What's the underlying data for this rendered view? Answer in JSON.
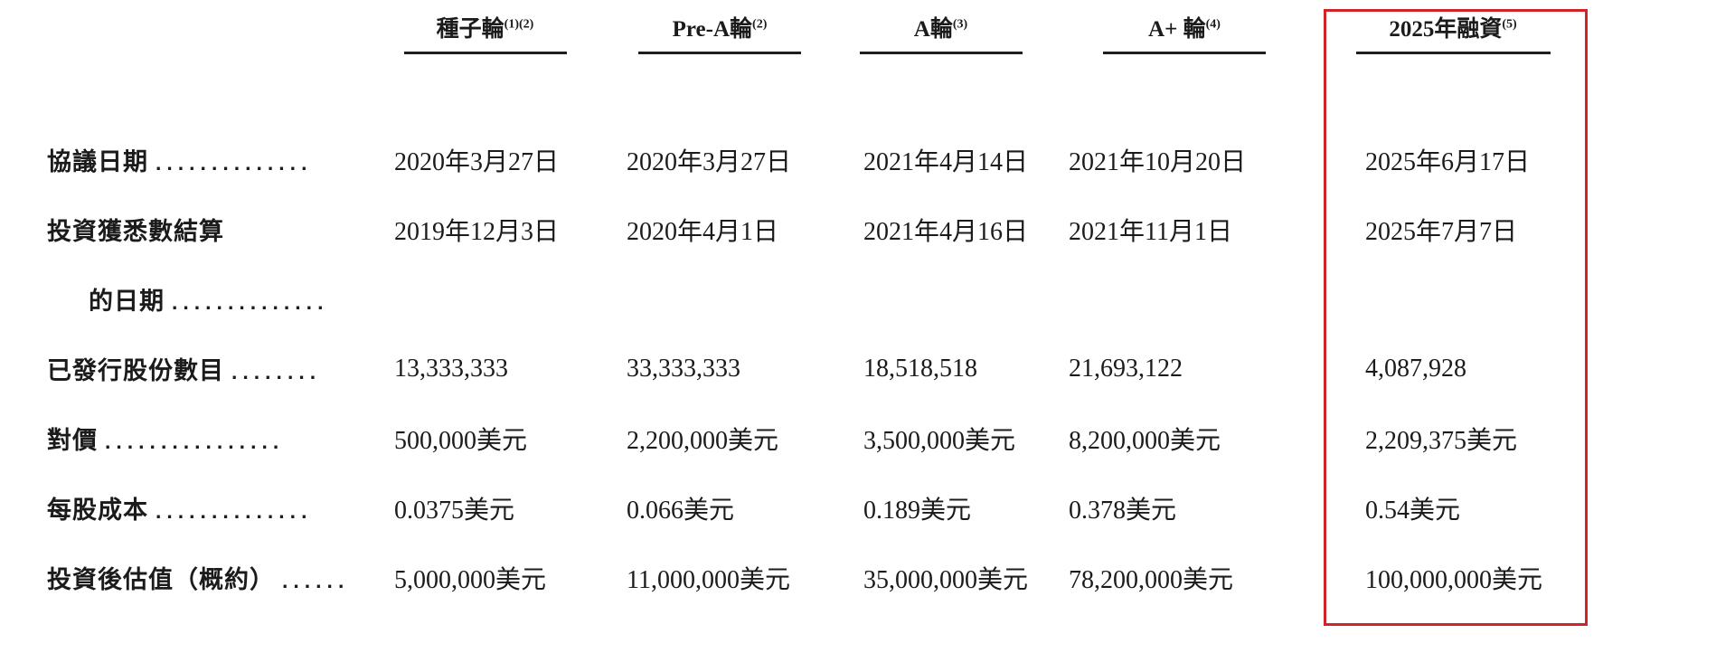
{
  "document": {
    "highlight_color": "#d2232a",
    "columns": [
      {
        "label": "種子輪",
        "sup": "(1)(2)"
      },
      {
        "label": "Pre-A輪",
        "sup": "(2)"
      },
      {
        "label": "A輪",
        "sup": "(3)"
      },
      {
        "label": "A+ 輪",
        "sup": "(4)"
      },
      {
        "label": "2025年融資",
        "sup": "(5)",
        "highlighted": true
      }
    ],
    "rows": [
      {
        "label": "協議日期",
        "leader": "..............",
        "values": [
          "2020年3月27日",
          "2020年3月27日",
          "2021年4月14日",
          "2021年10月20日",
          "2025年6月17日"
        ]
      },
      {
        "label": "投資獲悉數結算",
        "leader": "",
        "values": [
          "2019年12月3日",
          "2020年4月1日",
          "2021年4月16日",
          "2021年11月1日",
          "2025年7月7日"
        ]
      },
      {
        "label": "的日期",
        "leader": "..............",
        "values": [
          "",
          "",
          "",
          "",
          ""
        ]
      },
      {
        "label": "已發行股份數目",
        "leader": "........",
        "values": [
          "13,333,333",
          "33,333,333",
          "18,518,518",
          "21,693,122",
          "4,087,928"
        ]
      },
      {
        "label": "對價",
        "leader": "................",
        "values": [
          "500,000美元",
          "2,200,000美元",
          "3,500,000美元",
          "8,200,000美元",
          "2,209,375美元"
        ]
      },
      {
        "label": "每股成本",
        "leader": "..............",
        "values": [
          "0.0375美元",
          "0.066美元",
          "0.189美元",
          "0.378美元",
          "0.54美元"
        ]
      },
      {
        "label": "投資後估值（概約）",
        "leader": "......",
        "values": [
          "5,000,000美元",
          "11,000,000美元",
          "35,000,000美元",
          "78,200,000美元",
          "100,000,000美元"
        ]
      }
    ]
  }
}
